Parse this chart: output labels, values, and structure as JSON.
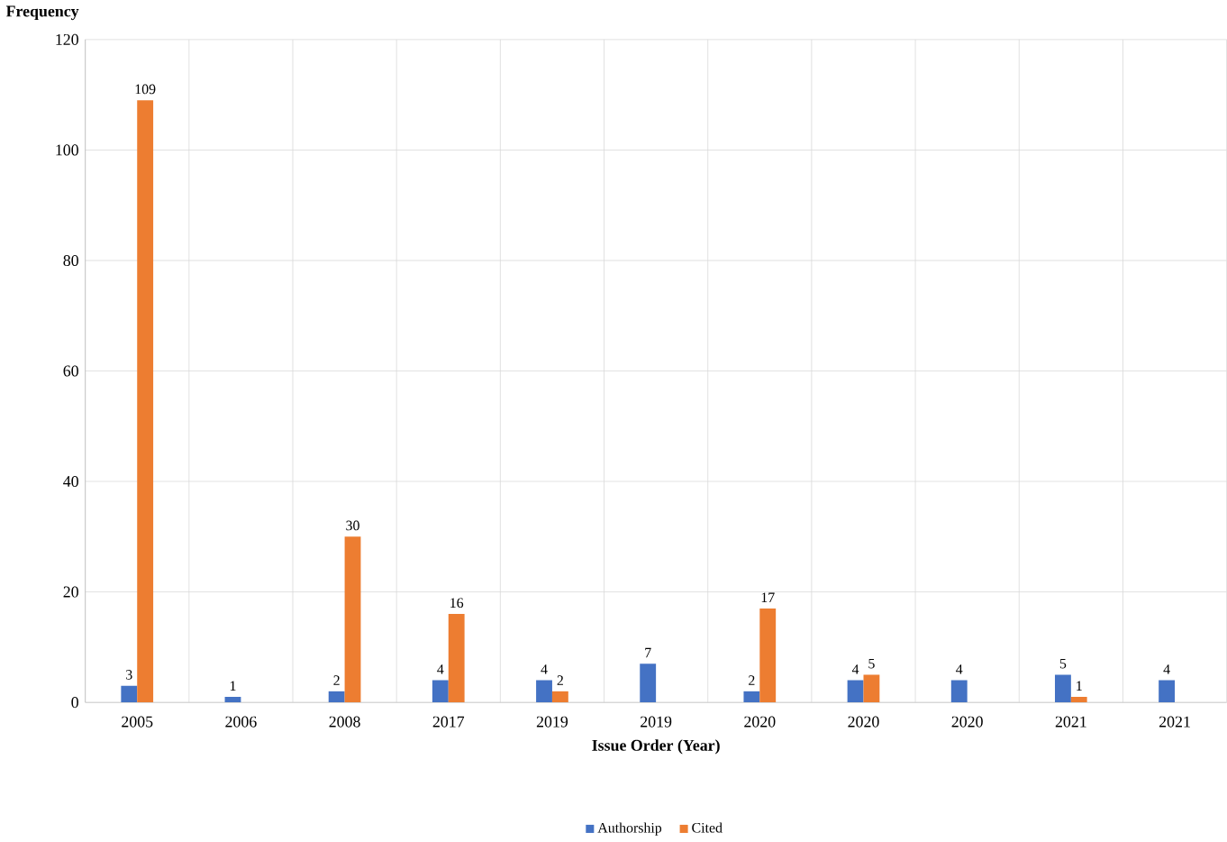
{
  "chart_data": {
    "type": "bar",
    "ylabel": "Frequency",
    "xlabel": "Issue Order (Year)",
    "categories": [
      "2005",
      "2006",
      "2008",
      "2017",
      "2019",
      "2019",
      "2020",
      "2020",
      "2020",
      "2021",
      "2021"
    ],
    "series": [
      {
        "name": "Authorship",
        "color": "#4472c4",
        "values": [
          3,
          1,
          2,
          4,
          4,
          7,
          2,
          4,
          4,
          5,
          4
        ]
      },
      {
        "name": "Cited",
        "color": "#ed7d31",
        "values": [
          109,
          null,
          30,
          16,
          2,
          null,
          17,
          5,
          null,
          1,
          null
        ]
      }
    ],
    "ylim": [
      0,
      120
    ],
    "yticks": [
      0,
      20,
      40,
      60,
      80,
      100,
      120
    ],
    "grid": true,
    "legend": "bottom",
    "data_labels": true
  }
}
